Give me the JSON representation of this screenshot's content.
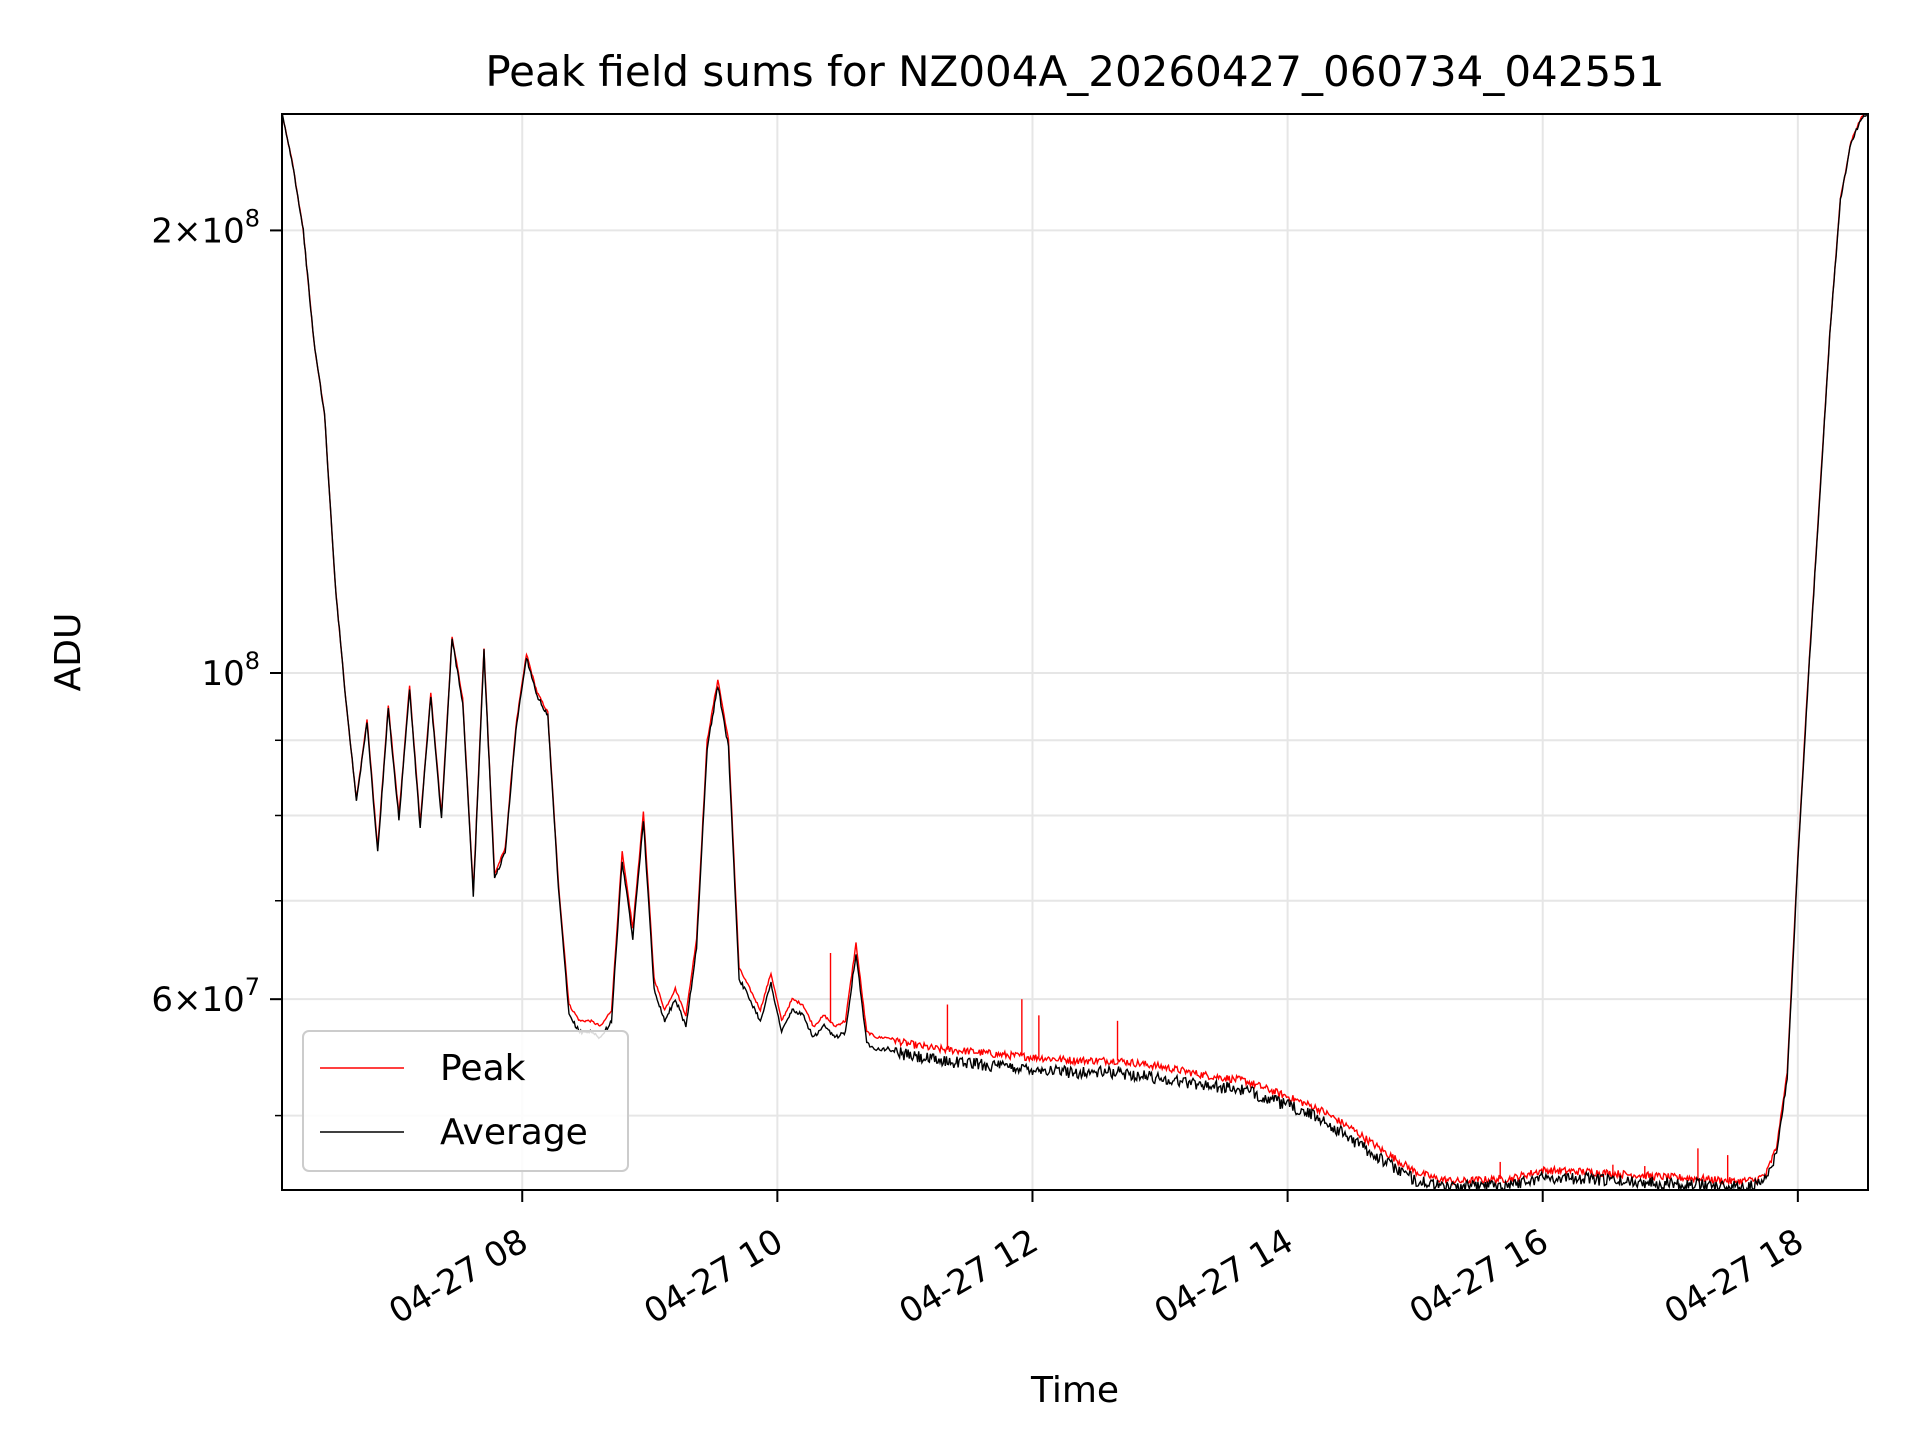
{
  "chart_data": {
    "type": "line",
    "title": "Peak field sums for NZ004A_20260427_060734_042551",
    "xlabel": "Time",
    "ylabel": "ADU",
    "y_scale": "log",
    "grid": true,
    "legend_position": "lower-left",
    "xlim": [
      "2026-04-27 06:07",
      "2026-04-27 18:33"
    ],
    "ylim": [
      44500000,
      240000000
    ],
    "x_ticks": [
      {
        "value": "2026-04-27 08:00",
        "label": "04-27 08"
      },
      {
        "value": "2026-04-27 10:00",
        "label": "04-27 10"
      },
      {
        "value": "2026-04-27 12:00",
        "label": "04-27 12"
      },
      {
        "value": "2026-04-27 14:00",
        "label": "04-27 14"
      },
      {
        "value": "2026-04-27 16:00",
        "label": "04-27 16"
      },
      {
        "value": "2026-04-27 18:00",
        "label": "04-27 18"
      }
    ],
    "y_major_ticks": [
      {
        "value": 60000000,
        "base": "6",
        "exp": "7"
      },
      {
        "value": 100000000,
        "base": "",
        "exp": "8"
      },
      {
        "value": 200000000,
        "base": "2",
        "exp": "8"
      }
    ],
    "y_minor_ticks": [
      50000000,
      70000000,
      80000000,
      90000000,
      300000000,
      400000000
    ],
    "times": [
      "2026-04-27 06:07",
      "2026-04-27 06:12",
      "2026-04-27 06:17",
      "2026-04-27 06:22",
      "2026-04-27 06:27",
      "2026-04-27 06:32",
      "2026-04-27 06:37",
      "2026-04-27 06:42",
      "2026-04-27 06:47",
      "2026-04-27 06:52",
      "2026-04-27 06:57",
      "2026-04-27 07:02",
      "2026-04-27 07:07",
      "2026-04-27 07:12",
      "2026-04-27 07:17",
      "2026-04-27 07:22",
      "2026-04-27 07:27",
      "2026-04-27 07:32",
      "2026-04-27 07:37",
      "2026-04-27 07:42",
      "2026-04-27 07:47",
      "2026-04-27 07:52",
      "2026-04-27 07:57",
      "2026-04-27 08:02",
      "2026-04-27 08:07",
      "2026-04-27 08:12",
      "2026-04-27 08:17",
      "2026-04-27 08:22",
      "2026-04-27 08:27",
      "2026-04-27 08:32",
      "2026-04-27 08:37",
      "2026-04-27 08:42",
      "2026-04-27 08:47",
      "2026-04-27 08:52",
      "2026-04-27 08:57",
      "2026-04-27 09:02",
      "2026-04-27 09:07",
      "2026-04-27 09:12",
      "2026-04-27 09:17",
      "2026-04-27 09:22",
      "2026-04-27 09:27",
      "2026-04-27 09:32",
      "2026-04-27 09:37",
      "2026-04-27 09:42",
      "2026-04-27 09:47",
      "2026-04-27 09:52",
      "2026-04-27 09:57",
      "2026-04-27 10:02",
      "2026-04-27 10:07",
      "2026-04-27 10:12",
      "2026-04-27 10:17",
      "2026-04-27 10:22",
      "2026-04-27 10:27",
      "2026-04-27 10:32",
      "2026-04-27 10:37",
      "2026-04-27 10:42",
      "2026-04-27 10:47",
      "2026-04-27 10:52",
      "2026-04-27 11:00",
      "2026-04-27 11:15",
      "2026-04-27 11:30",
      "2026-04-27 11:45",
      "2026-04-27 12:00",
      "2026-04-27 12:20",
      "2026-04-27 12:40",
      "2026-04-27 13:00",
      "2026-04-27 13:20",
      "2026-04-27 13:40",
      "2026-04-27 14:00",
      "2026-04-27 14:15",
      "2026-04-27 14:30",
      "2026-04-27 14:45",
      "2026-04-27 15:00",
      "2026-04-27 15:10",
      "2026-04-27 15:20",
      "2026-04-27 15:30",
      "2026-04-27 15:45",
      "2026-04-27 16:00",
      "2026-04-27 16:20",
      "2026-04-27 16:40",
      "2026-04-27 17:00",
      "2026-04-27 17:15",
      "2026-04-27 17:30",
      "2026-04-27 17:40",
      "2026-04-27 17:45",
      "2026-04-27 17:50",
      "2026-04-27 17:55",
      "2026-04-27 18:00",
      "2026-04-27 18:05",
      "2026-04-27 18:10",
      "2026-04-27 18:15",
      "2026-04-27 18:20",
      "2026-04-27 18:25",
      "2026-04-27 18:30",
      "2026-04-27 18:33"
    ],
    "series": [
      {
        "name": "Peak",
        "color": "#ff0000",
        "values": [
          240000000,
          222000000,
          200000000,
          168000000,
          150000000,
          115000000,
          96000000,
          82000000,
          93000000,
          76000000,
          95000000,
          80000000,
          98000000,
          79000000,
          97000000,
          80000000,
          106000000,
          96000000,
          71000000,
          104000000,
          73000000,
          76000000,
          92000000,
          103000000,
          97000000,
          94000000,
          72000000,
          59500000,
          58000000,
          58000000,
          57500000,
          59000000,
          75500000,
          67000000,
          80500000,
          62000000,
          59000000,
          61000000,
          58500000,
          66000000,
          90000000,
          99000000,
          90000000,
          63000000,
          61000000,
          59000000,
          62500000,
          58000000,
          60000000,
          59500000,
          57500000,
          58500000,
          57500000,
          58000000,
          65500000,
          57000000,
          56500000,
          56500000,
          56000000,
          55500000,
          55300000,
          55000000,
          54800000,
          54500000,
          54500000,
          54000000,
          53300000,
          52800000,
          51500000,
          50500000,
          49000000,
          47300000,
          45800000,
          45300000,
          45100000,
          45200000,
          45300000,
          45900000,
          45800000,
          45600000,
          45400000,
          45300000,
          45100000,
          45200000,
          45600000,
          47600000,
          53500000,
          75000000,
          100000000,
          130000000,
          170000000,
          210000000,
          230000000,
          239000000,
          241000000
        ]
      },
      {
        "name": "Average",
        "color": "#000000",
        "values": [
          240000000,
          222000000,
          200000000,
          168000000,
          150000000,
          115000000,
          96000000,
          82000000,
          92500000,
          75500000,
          94500000,
          79500000,
          97500000,
          78500000,
          96500000,
          79500000,
          105500000,
          95500000,
          70500000,
          103500000,
          72500000,
          75500000,
          91500000,
          102500000,
          96500000,
          93500000,
          71500000,
          58500000,
          57000000,
          57000000,
          56500000,
          58000000,
          74500000,
          66000000,
          79500000,
          61000000,
          58000000,
          60000000,
          57500000,
          65000000,
          89000000,
          98000000,
          89000000,
          62000000,
          60000000,
          58000000,
          61500000,
          57000000,
          59000000,
          58500000,
          56500000,
          57500000,
          56500000,
          57000000,
          64500000,
          56000000,
          55500000,
          55500000,
          55000000,
          54500000,
          54300000,
          54000000,
          53800000,
          53500000,
          53500000,
          53000000,
          52500000,
          52000000,
          50800000,
          49800000,
          48200000,
          46600000,
          45200000,
          44800000,
          44700000,
          44800000,
          44900000,
          45400000,
          45300000,
          45100000,
          45000000,
          44900000,
          44700000,
          44800000,
          45200000,
          47200000,
          53000000,
          74500000,
          99500000,
          129500000,
          169500000,
          209500000,
          229500000,
          238500000,
          240500000
        ]
      }
    ],
    "spikes": [
      {
        "time": "2026-04-27 10:25",
        "value": 64500000
      },
      {
        "time": "2026-04-27 11:20",
        "value": 59500000
      },
      {
        "time": "2026-04-27 11:55",
        "value": 60000000
      },
      {
        "time": "2026-04-27 12:03",
        "value": 58500000
      },
      {
        "time": "2026-04-27 12:40",
        "value": 58000000
      },
      {
        "time": "2026-04-27 15:40",
        "value": 46500000
      },
      {
        "time": "2026-04-27 16:33",
        "value": 46300000
      },
      {
        "time": "2026-04-27 16:48",
        "value": 46200000
      },
      {
        "time": "2026-04-27 17:13",
        "value": 47500000
      },
      {
        "time": "2026-04-27 17:27",
        "value": 47000000
      }
    ]
  }
}
